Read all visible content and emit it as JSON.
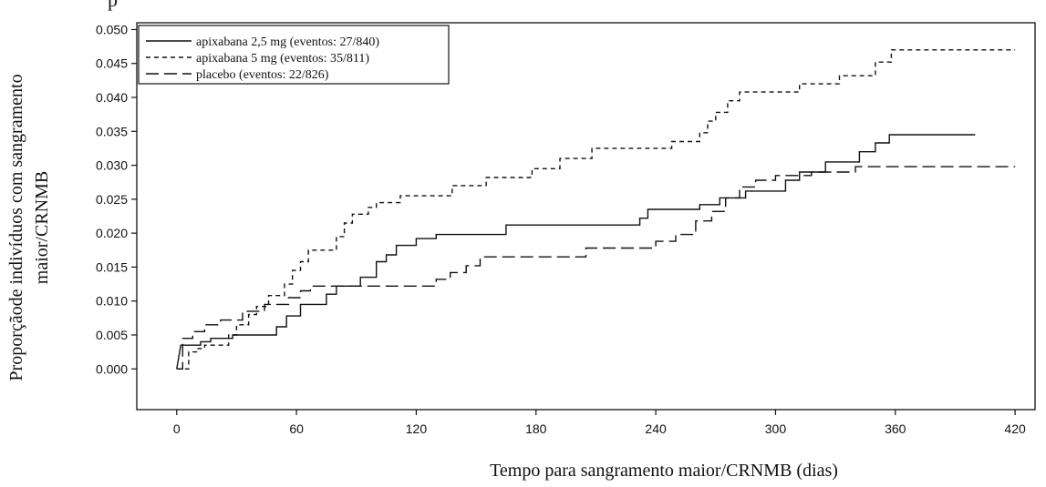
{
  "top_fragment": "p",
  "chart_data": {
    "type": "line",
    "title": "",
    "xlabel": "Tempo para sangramento maior/CRNMB (dias)",
    "ylabel_lines": [
      "Proporçãode indivíduos com sangramento",
      "maior/CRNMB"
    ],
    "xlim": [
      -20,
      430
    ],
    "ylim": [
      -0.006,
      0.051
    ],
    "xticks": [
      0,
      60,
      120,
      180,
      240,
      300,
      360,
      420
    ],
    "xtick_labels": [
      "0",
      "60",
      "120",
      "180",
      "240",
      "300",
      "360",
      "420"
    ],
    "yticks": [
      0.0,
      0.005,
      0.01,
      0.015,
      0.02,
      0.025,
      0.03,
      0.035,
      0.04,
      0.045,
      0.05
    ],
    "ytick_labels": [
      "0.000",
      "0.005",
      "0.010",
      "0.015",
      "0.020",
      "0.025",
      "0.030",
      "0.035",
      "0.040",
      "0.045",
      "0.050"
    ],
    "grid": false,
    "legend_position": "top-left",
    "step": true,
    "series": [
      {
        "name": "apixabana 2,5  mg (eventos: 27/840)",
        "dash": "solid",
        "color": "#111111",
        "points": [
          [
            0,
            0
          ],
          [
            2,
            0.0035
          ],
          [
            12,
            0.0035
          ],
          [
            12,
            0.004
          ],
          [
            17,
            0.004
          ],
          [
            17,
            0.0045
          ],
          [
            28,
            0.0045
          ],
          [
            28,
            0.005
          ],
          [
            50,
            0.005
          ],
          [
            50,
            0.0062
          ],
          [
            55,
            0.0062
          ],
          [
            55,
            0.0078
          ],
          [
            62,
            0.0078
          ],
          [
            62,
            0.0095
          ],
          [
            75,
            0.0095
          ],
          [
            75,
            0.011
          ],
          [
            80,
            0.011
          ],
          [
            80,
            0.0122
          ],
          [
            92,
            0.0122
          ],
          [
            92,
            0.0135
          ],
          [
            100,
            0.0135
          ],
          [
            100,
            0.0158
          ],
          [
            105,
            0.0158
          ],
          [
            105,
            0.0168
          ],
          [
            110,
            0.0168
          ],
          [
            110,
            0.0182
          ],
          [
            120,
            0.0182
          ],
          [
            120,
            0.0192
          ],
          [
            130,
            0.0192
          ],
          [
            130,
            0.0198
          ],
          [
            165,
            0.0198
          ],
          [
            165,
            0.0212
          ],
          [
            232,
            0.0212
          ],
          [
            232,
            0.0222
          ],
          [
            236,
            0.0222
          ],
          [
            236,
            0.0235
          ],
          [
            262,
            0.0235
          ],
          [
            262,
            0.0242
          ],
          [
            272,
            0.0242
          ],
          [
            272,
            0.0252
          ],
          [
            285,
            0.0252
          ],
          [
            285,
            0.0262
          ],
          [
            305,
            0.0262
          ],
          [
            305,
            0.0278
          ],
          [
            312,
            0.0278
          ],
          [
            312,
            0.029
          ],
          [
            325,
            0.029
          ],
          [
            325,
            0.0305
          ],
          [
            342,
            0.0305
          ],
          [
            342,
            0.032
          ],
          [
            350,
            0.032
          ],
          [
            350,
            0.0333
          ],
          [
            357,
            0.0333
          ],
          [
            357,
            0.0345
          ],
          [
            400,
            0.0345
          ]
        ]
      },
      {
        "name": "apixabana 5  mg (eventos:  35/811)",
        "dash": "short",
        "color": "#111111",
        "points": [
          [
            0,
            0
          ],
          [
            6,
            0
          ],
          [
            6,
            0.0025
          ],
          [
            10,
            0.0025
          ],
          [
            10,
            0.003
          ],
          [
            14,
            0.003
          ],
          [
            14,
            0.0035
          ],
          [
            26,
            0.0035
          ],
          [
            26,
            0.005
          ],
          [
            30,
            0.005
          ],
          [
            30,
            0.0065
          ],
          [
            36,
            0.0065
          ],
          [
            36,
            0.008
          ],
          [
            40,
            0.008
          ],
          [
            40,
            0.0092
          ],
          [
            46,
            0.0092
          ],
          [
            46,
            0.0108
          ],
          [
            54,
            0.0108
          ],
          [
            54,
            0.0125
          ],
          [
            58,
            0.0125
          ],
          [
            58,
            0.0145
          ],
          [
            62,
            0.0145
          ],
          [
            62,
            0.0158
          ],
          [
            66,
            0.0158
          ],
          [
            66,
            0.0175
          ],
          [
            80,
            0.0175
          ],
          [
            80,
            0.0195
          ],
          [
            84,
            0.0195
          ],
          [
            84,
            0.0215
          ],
          [
            88,
            0.0215
          ],
          [
            88,
            0.0228
          ],
          [
            96,
            0.0228
          ],
          [
            96,
            0.0238
          ],
          [
            100,
            0.0238
          ],
          [
            100,
            0.0245
          ],
          [
            112,
            0.0245
          ],
          [
            112,
            0.0255
          ],
          [
            138,
            0.0255
          ],
          [
            138,
            0.027
          ],
          [
            155,
            0.027
          ],
          [
            155,
            0.0282
          ],
          [
            178,
            0.0282
          ],
          [
            178,
            0.0295
          ],
          [
            192,
            0.0295
          ],
          [
            192,
            0.031
          ],
          [
            208,
            0.031
          ],
          [
            208,
            0.0325
          ],
          [
            248,
            0.0325
          ],
          [
            248,
            0.0335
          ],
          [
            262,
            0.0335
          ],
          [
            262,
            0.0348
          ],
          [
            266,
            0.0348
          ],
          [
            266,
            0.0365
          ],
          [
            270,
            0.0365
          ],
          [
            270,
            0.0378
          ],
          [
            276,
            0.0378
          ],
          [
            276,
            0.0395
          ],
          [
            282,
            0.0395
          ],
          [
            282,
            0.0408
          ],
          [
            312,
            0.0408
          ],
          [
            312,
            0.042
          ],
          [
            332,
            0.042
          ],
          [
            332,
            0.0432
          ],
          [
            350,
            0.0432
          ],
          [
            350,
            0.0452
          ],
          [
            358,
            0.0452
          ],
          [
            358,
            0.047
          ],
          [
            420,
            0.047
          ]
        ]
      },
      {
        "name": "placebo  (eventos: 22/826)",
        "dash": "long",
        "color": "#111111",
        "points": [
          [
            0,
            0
          ],
          [
            3,
            0
          ],
          [
            3,
            0.0045
          ],
          [
            8,
            0.0045
          ],
          [
            8,
            0.0055
          ],
          [
            14,
            0.0055
          ],
          [
            14,
            0.0065
          ],
          [
            22,
            0.0065
          ],
          [
            22,
            0.0072
          ],
          [
            33,
            0.0072
          ],
          [
            33,
            0.0085
          ],
          [
            44,
            0.0085
          ],
          [
            44,
            0.0095
          ],
          [
            56,
            0.0095
          ],
          [
            56,
            0.0105
          ],
          [
            62,
            0.0105
          ],
          [
            62,
            0.0115
          ],
          [
            67,
            0.0115
          ],
          [
            67,
            0.0122
          ],
          [
            130,
            0.0122
          ],
          [
            130,
            0.0132
          ],
          [
            137,
            0.0132
          ],
          [
            137,
            0.0142
          ],
          [
            145,
            0.0142
          ],
          [
            145,
            0.0152
          ],
          [
            152,
            0.0152
          ],
          [
            152,
            0.0165
          ],
          [
            205,
            0.0165
          ],
          [
            205,
            0.0178
          ],
          [
            240,
            0.0178
          ],
          [
            240,
            0.0188
          ],
          [
            250,
            0.0188
          ],
          [
            250,
            0.0198
          ],
          [
            260,
            0.0198
          ],
          [
            260,
            0.0218
          ],
          [
            268,
            0.0218
          ],
          [
            268,
            0.0232
          ],
          [
            275,
            0.0232
          ],
          [
            275,
            0.0252
          ],
          [
            282,
            0.0252
          ],
          [
            282,
            0.0268
          ],
          [
            290,
            0.0268
          ],
          [
            290,
            0.0278
          ],
          [
            300,
            0.0278
          ],
          [
            300,
            0.0285
          ],
          [
            318,
            0.0285
          ],
          [
            318,
            0.029
          ],
          [
            340,
            0.029
          ],
          [
            340,
            0.0298
          ],
          [
            420,
            0.0298
          ]
        ]
      }
    ]
  }
}
